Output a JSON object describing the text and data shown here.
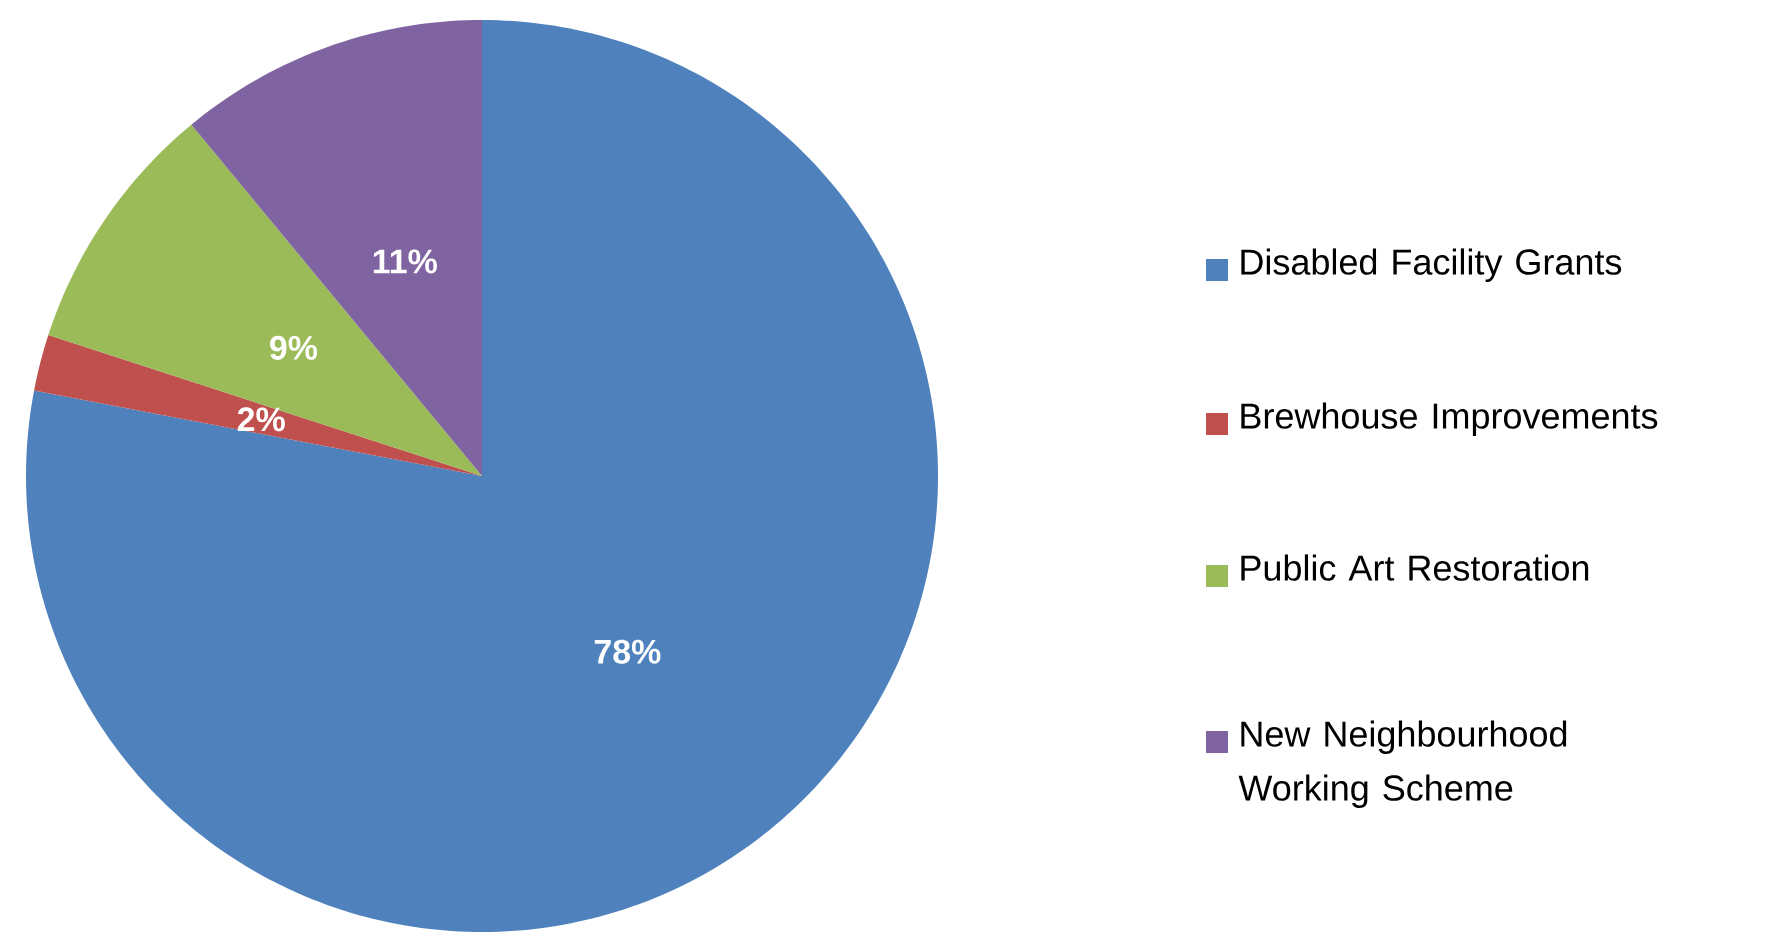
{
  "chart_data": {
    "type": "pie",
    "categories": [
      "Disabled Facility Grants",
      "Brewhouse Improvements",
      "Public Art Restoration",
      "New Neighbourhood Working Scheme"
    ],
    "values": [
      78,
      2,
      9,
      11
    ],
    "colors": [
      "#4f81bd",
      "#c0504d",
      "#9bbb59",
      "#8064a2"
    ],
    "value_labels": [
      "78%",
      "2%",
      "9%",
      "11%"
    ],
    "legend": "right"
  }
}
